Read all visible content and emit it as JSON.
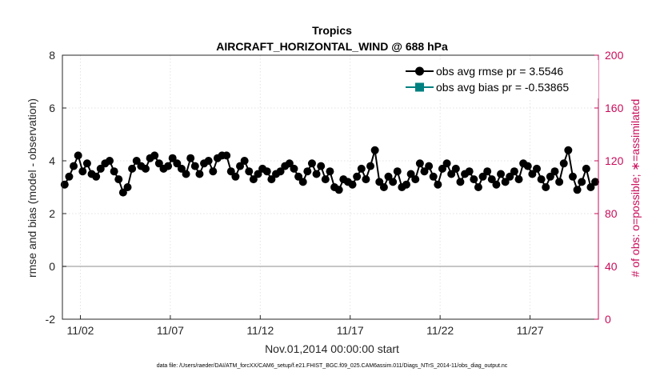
{
  "chart_data": {
    "type": "line",
    "title": "Tropics",
    "subtitle": "AIRCRAFT_HORIZONTAL_WIND @ 688 hPa",
    "xlabel": "Nov.01,2014 00:00:00 start",
    "ylabel": "rmse and bias (model - observation)",
    "ylabel_right": "# of obs: o=possible; ∗=assimilated",
    "footer": "data file: /Users/raeder/DAI/ATM_forcXX/CAM6_setup/f.e21.FHIST_BGC.f09_025.CAM6assim.011/Diags_NTrS_2014-11/obs_diag_output.nc",
    "xlim": [
      0.5,
      30.3
    ],
    "ylim": [
      -2,
      8
    ],
    "ylim_right": [
      0,
      200
    ],
    "xticks": [
      1.5,
      6.5,
      11.5,
      16.5,
      21.5,
      26.5
    ],
    "xtick_labels": [
      "11/02",
      "11/07",
      "11/12",
      "11/17",
      "11/22",
      "11/27"
    ],
    "yticks": [
      -2,
      0,
      2,
      4,
      6,
      8
    ],
    "ytick_labels": [
      "-2",
      "0",
      "2",
      "4",
      "6",
      "8"
    ],
    "yticks_right": [
      0,
      40,
      80,
      120,
      160,
      200
    ],
    "ytick_labels_right": [
      "0",
      "40",
      "80",
      "120",
      "160",
      "200"
    ],
    "legend": {
      "position": "top-right",
      "rmse_label": "obs avg rmse pr = 3.5546",
      "bias_label": "obs avg bias pr = -0.53865"
    },
    "colors": {
      "rmse": "#000000",
      "bias": "#008080",
      "obs": "#c80c5a",
      "zero_line": "#b3b3b3"
    },
    "x": [
      0.625,
      0.875,
      1.125,
      1.375,
      1.625,
      1.875,
      2.125,
      2.375,
      2.625,
      2.875,
      3.125,
      3.375,
      3.625,
      3.875,
      4.125,
      4.375,
      4.625,
      4.875,
      5.125,
      5.375,
      5.625,
      5.875,
      6.125,
      6.375,
      6.625,
      6.875,
      7.125,
      7.375,
      7.625,
      7.875,
      8.125,
      8.375,
      8.625,
      8.875,
      9.125,
      9.375,
      9.625,
      9.875,
      10.125,
      10.375,
      10.625,
      10.875,
      11.125,
      11.375,
      11.625,
      11.875,
      12.125,
      12.375,
      12.625,
      12.875,
      13.125,
      13.375,
      13.625,
      13.875,
      14.125,
      14.375,
      14.625,
      14.875,
      15.125,
      15.375,
      15.625,
      15.875,
      16.125,
      16.375,
      16.625,
      16.875,
      17.125,
      17.375,
      17.625,
      17.875,
      18.125,
      18.375,
      18.625,
      18.875,
      19.125,
      19.375,
      19.625,
      19.875,
      20.125,
      20.375,
      20.625,
      20.875,
      21.125,
      21.375,
      21.625,
      21.875,
      22.125,
      22.375,
      22.625,
      22.875,
      23.125,
      23.375,
      23.625,
      23.875,
      24.125,
      24.375,
      24.625,
      24.875,
      25.125,
      25.375,
      25.625,
      25.875,
      26.125,
      26.375,
      26.625,
      26.875,
      27.125,
      27.375,
      27.625,
      27.875,
      28.125,
      28.375,
      28.625,
      28.875,
      29.125,
      29.375,
      29.625,
      29.875,
      30.125
    ],
    "rmse": [
      3.1,
      3.4,
      3.8,
      4.2,
      3.6,
      3.9,
      3.5,
      3.4,
      3.7,
      3.9,
      4.0,
      3.6,
      3.3,
      2.8,
      3.0,
      3.7,
      4.0,
      3.8,
      3.7,
      4.1,
      4.2,
      3.9,
      3.7,
      3.8,
      4.1,
      3.9,
      3.7,
      3.5,
      4.1,
      3.8,
      3.5,
      3.9,
      4.0,
      3.6,
      4.1,
      4.2,
      4.2,
      3.6,
      3.4,
      3.8,
      4.0,
      3.6,
      3.3,
      3.5,
      3.7,
      3.6,
      3.3,
      3.5,
      3.6,
      3.8,
      3.9,
      3.7,
      3.4,
      3.2,
      3.6,
      3.9,
      3.5,
      3.8,
      3.3,
      3.6,
      3.0,
      2.9,
      3.3,
      3.2,
      3.1,
      3.4,
      3.7,
      3.3,
      3.8,
      4.4,
      3.2,
      3.0,
      3.4,
      3.2,
      3.6,
      3.0,
      3.1,
      3.5,
      3.3,
      3.9,
      3.6,
      3.8,
      3.4,
      3.1,
      3.7,
      3.9,
      3.5,
      3.7,
      3.2,
      3.5,
      3.6,
      3.3,
      3.0,
      3.4,
      3.6,
      3.3,
      3.1,
      3.5,
      3.2,
      3.4,
      3.6,
      3.3,
      3.9,
      3.8,
      3.5,
      3.7,
      3.3,
      3.0,
      3.4,
      3.6,
      3.2,
      3.9,
      4.4,
      3.4,
      2.9,
      3.2,
      3.7,
      3.0,
      3.2
    ]
  }
}
